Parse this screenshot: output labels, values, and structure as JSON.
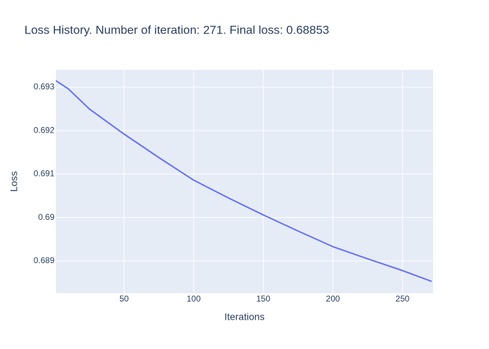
{
  "chart_data": {
    "type": "line",
    "title": "Loss History. Number of iteration: 271. Final loss: 0.68853",
    "x_label": "Iterations",
    "y_label": "Loss",
    "x": [
      1,
      10,
      25,
      50,
      75,
      100,
      125,
      150,
      175,
      200,
      225,
      250,
      271
    ],
    "series": [
      {
        "name": "Loss",
        "color": "#636efa",
        "values": [
          0.69315,
          0.69296,
          0.6925,
          0.69192,
          0.69138,
          0.69086,
          0.69045,
          0.69006,
          0.68969,
          0.68933,
          0.68905,
          0.68878,
          0.68853
        ]
      }
    ],
    "xlim": [
      1,
      272
    ],
    "xticks": [
      50,
      100,
      150,
      200,
      250
    ],
    "ylim": [
      0.68826,
      0.6934
    ],
    "yticks": [
      0.689,
      0.69,
      0.691,
      0.692,
      0.693
    ],
    "grid": true,
    "plot_background": "#e5ecf6"
  }
}
